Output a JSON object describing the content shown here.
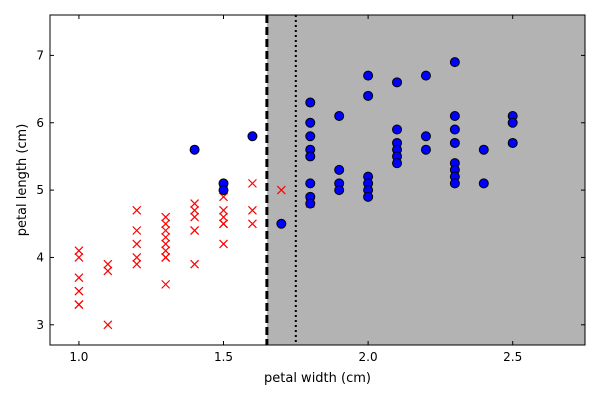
{
  "chart_data": {
    "type": "scatter",
    "title": "",
    "xlabel": "petal width (cm)",
    "ylabel": "petal length (cm)",
    "xlim": [
      0.9,
      2.75
    ],
    "ylim": [
      2.7,
      7.6
    ],
    "xticks": [
      1.0,
      1.5,
      2.0,
      2.5
    ],
    "yticks": [
      3,
      4,
      5,
      6,
      7
    ],
    "xtick_labels": [
      "1.0",
      "1.5",
      "2.0",
      "2.5"
    ],
    "ytick_labels": [
      "3",
      "4",
      "5",
      "6",
      "7"
    ],
    "grid": false,
    "regions": [
      {
        "x_from": 1.65,
        "x_to": 2.75,
        "color": "#b3b3b3"
      }
    ],
    "vertical_lines": [
      {
        "x": 1.65,
        "style": "dashed",
        "color": "#000000"
      },
      {
        "x": 1.75,
        "style": "dotted",
        "color": "#000000"
      }
    ],
    "series": [
      {
        "marker": "x",
        "color": "#ff0000",
        "points": [
          [
            1.0,
            4.1
          ],
          [
            1.0,
            4.0
          ],
          [
            1.0,
            3.7
          ],
          [
            1.0,
            3.5
          ],
          [
            1.0,
            3.5
          ],
          [
            1.0,
            3.3
          ],
          [
            1.0,
            3.3
          ],
          [
            1.1,
            3.9
          ],
          [
            1.1,
            3.8
          ],
          [
            1.1,
            3.0
          ],
          [
            1.2,
            4.7
          ],
          [
            1.2,
            4.4
          ],
          [
            1.2,
            4.2
          ],
          [
            1.2,
            4.0
          ],
          [
            1.2,
            3.9
          ],
          [
            1.3,
            4.6
          ],
          [
            1.3,
            4.5
          ],
          [
            1.3,
            4.4
          ],
          [
            1.3,
            4.3
          ],
          [
            1.3,
            4.2
          ],
          [
            1.3,
            4.1
          ],
          [
            1.3,
            4.0
          ],
          [
            1.3,
            4.0
          ],
          [
            1.3,
            3.6
          ],
          [
            1.4,
            4.8
          ],
          [
            1.4,
            4.7
          ],
          [
            1.4,
            4.6
          ],
          [
            1.4,
            4.4
          ],
          [
            1.4,
            4.4
          ],
          [
            1.4,
            3.9
          ],
          [
            1.5,
            5.0
          ],
          [
            1.5,
            4.9
          ],
          [
            1.5,
            4.7
          ],
          [
            1.5,
            4.6
          ],
          [
            1.5,
            4.5
          ],
          [
            1.5,
            4.5
          ],
          [
            1.5,
            4.2
          ],
          [
            1.6,
            5.1
          ],
          [
            1.6,
            4.7
          ],
          [
            1.6,
            4.5
          ],
          [
            1.7,
            5.0
          ],
          [
            1.8,
            4.8
          ]
        ]
      },
      {
        "marker": "o",
        "color": "#0000ff",
        "points": [
          [
            1.4,
            5.6
          ],
          [
            1.5,
            5.1
          ],
          [
            1.5,
            5.0
          ],
          [
            1.6,
            5.8
          ],
          [
            1.7,
            4.5
          ],
          [
            1.8,
            6.3
          ],
          [
            1.8,
            6.0
          ],
          [
            1.8,
            5.8
          ],
          [
            1.8,
            5.6
          ],
          [
            1.8,
            5.5
          ],
          [
            1.8,
            5.1
          ],
          [
            1.8,
            4.9
          ],
          [
            1.8,
            4.8
          ],
          [
            1.9,
            6.1
          ],
          [
            1.9,
            5.3
          ],
          [
            1.9,
            5.1
          ],
          [
            1.9,
            5.0
          ],
          [
            2.0,
            6.7
          ],
          [
            2.0,
            6.4
          ],
          [
            2.0,
            5.2
          ],
          [
            2.0,
            5.1
          ],
          [
            2.0,
            5.0
          ],
          [
            2.0,
            4.9
          ],
          [
            2.1,
            6.6
          ],
          [
            2.1,
            5.9
          ],
          [
            2.1,
            5.7
          ],
          [
            2.1,
            5.6
          ],
          [
            2.1,
            5.5
          ],
          [
            2.1,
            5.4
          ],
          [
            2.2,
            6.7
          ],
          [
            2.2,
            5.8
          ],
          [
            2.2,
            5.6
          ],
          [
            2.3,
            6.9
          ],
          [
            2.3,
            6.1
          ],
          [
            2.3,
            5.9
          ],
          [
            2.3,
            5.7
          ],
          [
            2.3,
            5.4
          ],
          [
            2.3,
            5.3
          ],
          [
            2.3,
            5.2
          ],
          [
            2.3,
            5.1
          ],
          [
            2.4,
            5.6
          ],
          [
            2.4,
            5.1
          ],
          [
            2.5,
            6.1
          ],
          [
            2.5,
            6.0
          ],
          [
            2.5,
            5.7
          ]
        ]
      }
    ]
  }
}
